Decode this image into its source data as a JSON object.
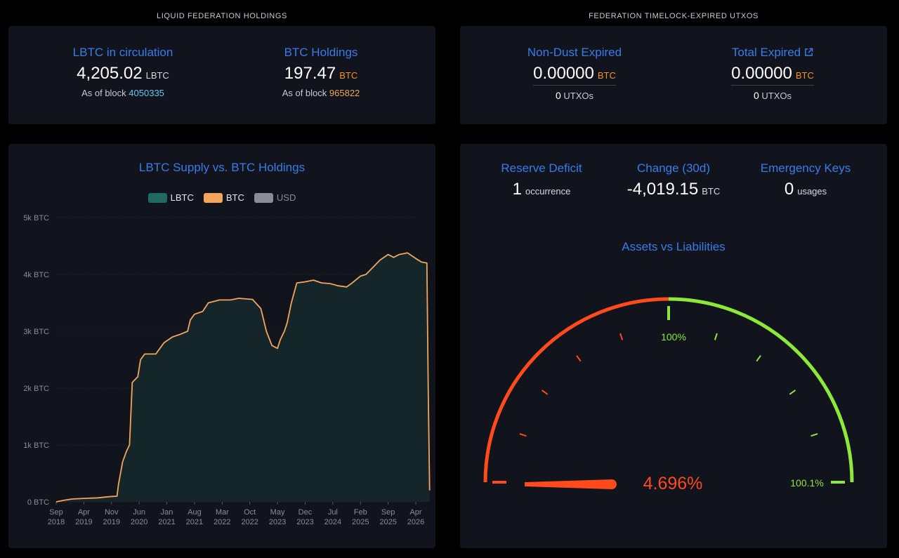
{
  "holdings": {
    "section_title": "LIQUID FEDERATION HOLDINGS",
    "lbtc": {
      "label": "LBTC in circulation",
      "value": "4,205.02",
      "unit": "LBTC",
      "block_prefix": "As of block",
      "block": "4050335"
    },
    "btc": {
      "label": "BTC Holdings",
      "value": "197.47",
      "unit": "BTC",
      "block_prefix": "As of block",
      "block": "965822"
    }
  },
  "expired": {
    "section_title": "FEDERATION TIMELOCK-EXPIRED UTXOS",
    "non_dust": {
      "label": "Non-Dust Expired",
      "value": "0.00000",
      "unit": "BTC",
      "count": "0",
      "count_unit": "UTXOs"
    },
    "total": {
      "label": "Total Expired",
      "value": "0.00000",
      "unit": "BTC",
      "count": "0",
      "count_unit": "UTXOs",
      "icon": "external-link-icon"
    }
  },
  "metrics": {
    "reserve_deficit": {
      "label": "Reserve Deficit",
      "value": "1",
      "unit": "occurrence"
    },
    "change_30d": {
      "label": "Change (30d)",
      "value": "-4,019.15",
      "unit": "BTC"
    },
    "emergency_keys": {
      "label": "Emergency Keys",
      "value": "0",
      "unit": "usages"
    }
  },
  "gauge": {
    "title": "Assets vs Liabilities",
    "value_text": "4.696%",
    "value": 4.696,
    "label_100": "100%",
    "label_max": "100.1%",
    "colors": {
      "low": "#ff4a1c",
      "high": "#8ee83a"
    }
  },
  "chart_data": {
    "type": "area",
    "title": "LBTC Supply vs. BTC Holdings",
    "legend": [
      "LBTC",
      "BTC",
      "USD"
    ],
    "legend_colors": [
      "#1f6b63",
      "#f4a55a",
      "#8a8d96"
    ],
    "y_ticks": [
      "0 BTC",
      "1k BTC",
      "2k BTC",
      "3k BTC",
      "4k BTC",
      "5k BTC"
    ],
    "ylim": [
      0,
      5000
    ],
    "x_ticks": [
      {
        "m": "Sep",
        "y": "2018"
      },
      {
        "m": "Apr",
        "y": "2019"
      },
      {
        "m": "Nov",
        "y": "2019"
      },
      {
        "m": "Jun",
        "y": "2020"
      },
      {
        "m": "Jan",
        "y": "2021"
      },
      {
        "m": "Aug",
        "y": "2021"
      },
      {
        "m": "Mar",
        "y": "2022"
      },
      {
        "m": "Oct",
        "y": "2022"
      },
      {
        "m": "May",
        "y": "2023"
      },
      {
        "m": "Dec",
        "y": "2023"
      },
      {
        "m": "Jul",
        "y": "2024"
      },
      {
        "m": "Feb",
        "y": "2025"
      },
      {
        "m": "Sep",
        "y": "2025"
      },
      {
        "m": "Apr",
        "y": "2026"
      }
    ],
    "series": [
      {
        "name": "BTC",
        "color": "#f4a55a",
        "points": [
          [
            0,
            0
          ],
          [
            0.3,
            30
          ],
          [
            0.6,
            50
          ],
          [
            1,
            60
          ],
          [
            1.5,
            70
          ],
          [
            1.9,
            90
          ],
          [
            2.2,
            100
          ],
          [
            2.25,
            300
          ],
          [
            2.4,
            700
          ],
          [
            2.55,
            900
          ],
          [
            2.65,
            1000
          ],
          [
            2.75,
            2100
          ],
          [
            2.95,
            2200
          ],
          [
            3.05,
            2500
          ],
          [
            3.2,
            2600
          ],
          [
            3.6,
            2600
          ],
          [
            3.75,
            2700
          ],
          [
            3.9,
            2800
          ],
          [
            4.2,
            2900
          ],
          [
            4.5,
            2950
          ],
          [
            4.75,
            3000
          ],
          [
            4.85,
            3200
          ],
          [
            5.0,
            3300
          ],
          [
            5.3,
            3350
          ],
          [
            5.5,
            3500
          ],
          [
            5.9,
            3550
          ],
          [
            6.3,
            3550
          ],
          [
            6.6,
            3580
          ],
          [
            7.1,
            3560
          ],
          [
            7.4,
            3400
          ],
          [
            7.6,
            3000
          ],
          [
            7.8,
            2750
          ],
          [
            8.0,
            2700
          ],
          [
            8.1,
            2850
          ],
          [
            8.25,
            3000
          ],
          [
            8.35,
            3150
          ],
          [
            8.5,
            3500
          ],
          [
            8.7,
            3850
          ],
          [
            9.0,
            3870
          ],
          [
            9.3,
            3900
          ],
          [
            9.6,
            3850
          ],
          [
            9.9,
            3840
          ],
          [
            10.2,
            3800
          ],
          [
            10.5,
            3780
          ],
          [
            10.7,
            3850
          ],
          [
            11.0,
            3970
          ],
          [
            11.2,
            4000
          ],
          [
            11.4,
            4100
          ],
          [
            11.7,
            4250
          ],
          [
            12.0,
            4350
          ],
          [
            12.2,
            4300
          ],
          [
            12.4,
            4350
          ],
          [
            12.7,
            4380
          ],
          [
            13.0,
            4280
          ],
          [
            13.2,
            4220
          ],
          [
            13.4,
            4200
          ],
          [
            13.45,
            2000
          ],
          [
            13.5,
            200
          ]
        ]
      }
    ]
  }
}
